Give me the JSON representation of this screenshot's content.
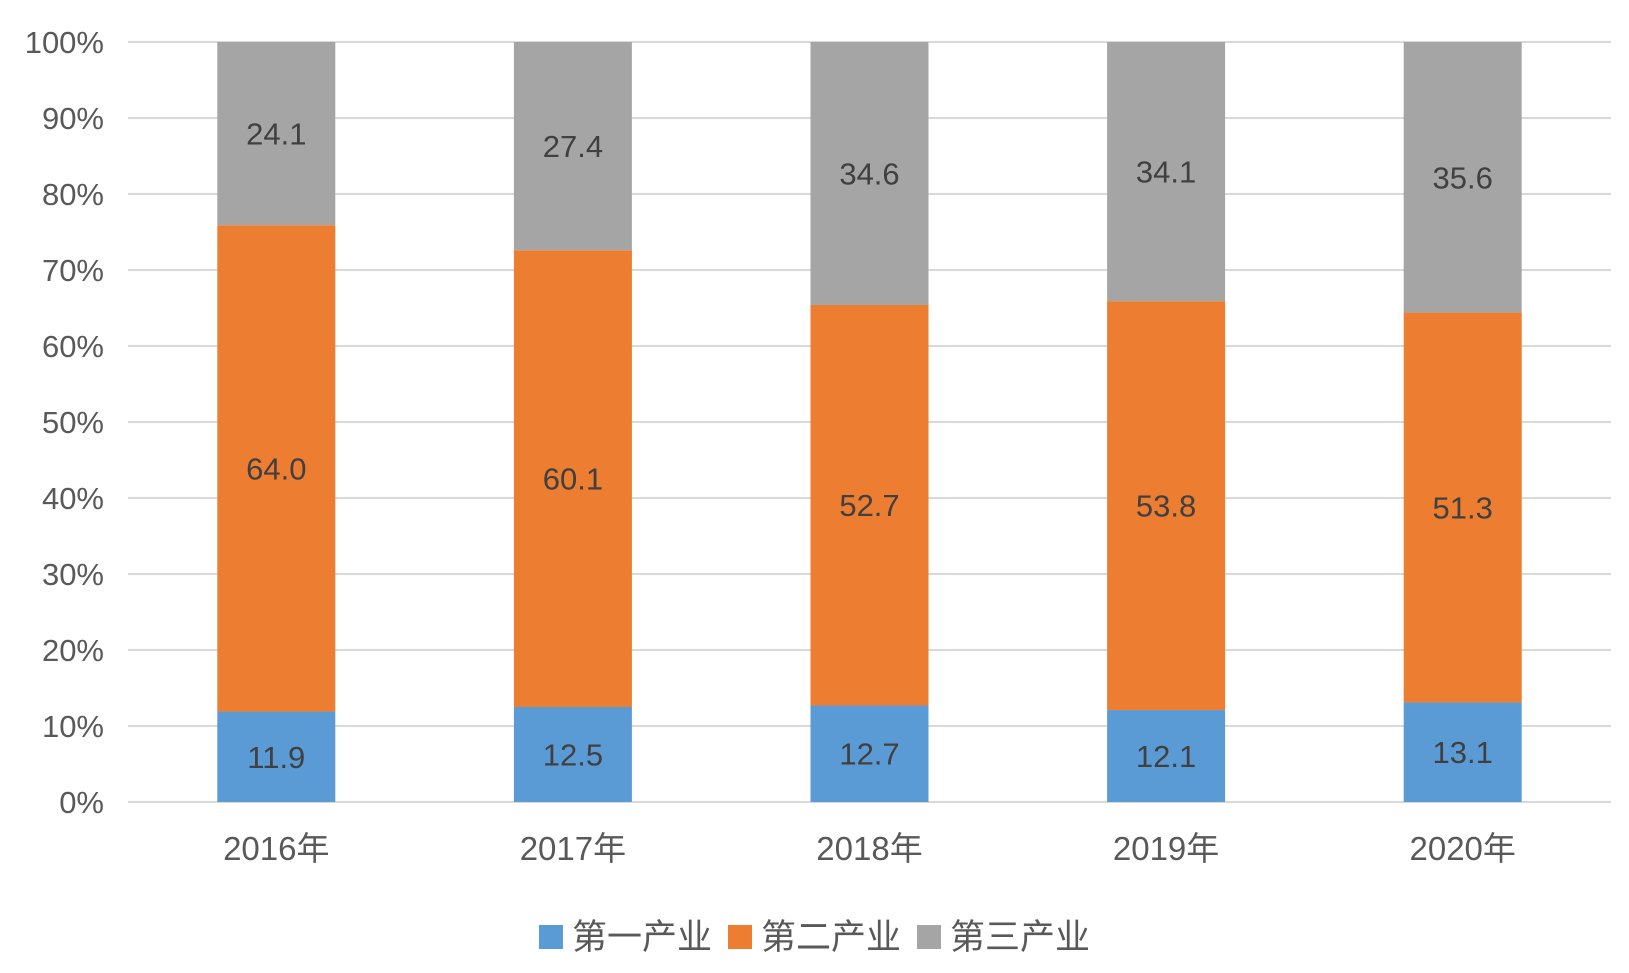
{
  "chart_data": {
    "type": "bar",
    "stacked": "percent",
    "categories": [
      "2016年",
      "2017年",
      "2018年",
      "2019年",
      "2020年"
    ],
    "series": [
      {
        "name": "第一产业",
        "values": [
          11.9,
          12.5,
          12.7,
          12.1,
          13.1
        ],
        "color": "#5b9bd5"
      },
      {
        "name": "第二产业",
        "values": [
          64.0,
          60.1,
          52.7,
          53.8,
          51.3
        ],
        "color": "#ed7d31"
      },
      {
        "name": "第三产业",
        "values": [
          24.1,
          27.4,
          34.6,
          34.1,
          35.6
        ],
        "color": "#a5a5a5"
      }
    ],
    "value_labels": [
      [
        "11.9",
        "12.5",
        "12.7",
        "12.1",
        "13.1"
      ],
      [
        "64.0",
        "60.1",
        "52.7",
        "53.8",
        "51.3"
      ],
      [
        "24.1",
        "27.4",
        "34.6",
        "34.1",
        "35.6"
      ]
    ],
    "y_ticks": [
      "0%",
      "10%",
      "20%",
      "30%",
      "40%",
      "50%",
      "60%",
      "70%",
      "80%",
      "90%",
      "100%"
    ],
    "ylim": [
      0,
      100
    ],
    "grid": true,
    "legend": "bottom",
    "title": "",
    "xlabel": "",
    "ylabel": ""
  }
}
